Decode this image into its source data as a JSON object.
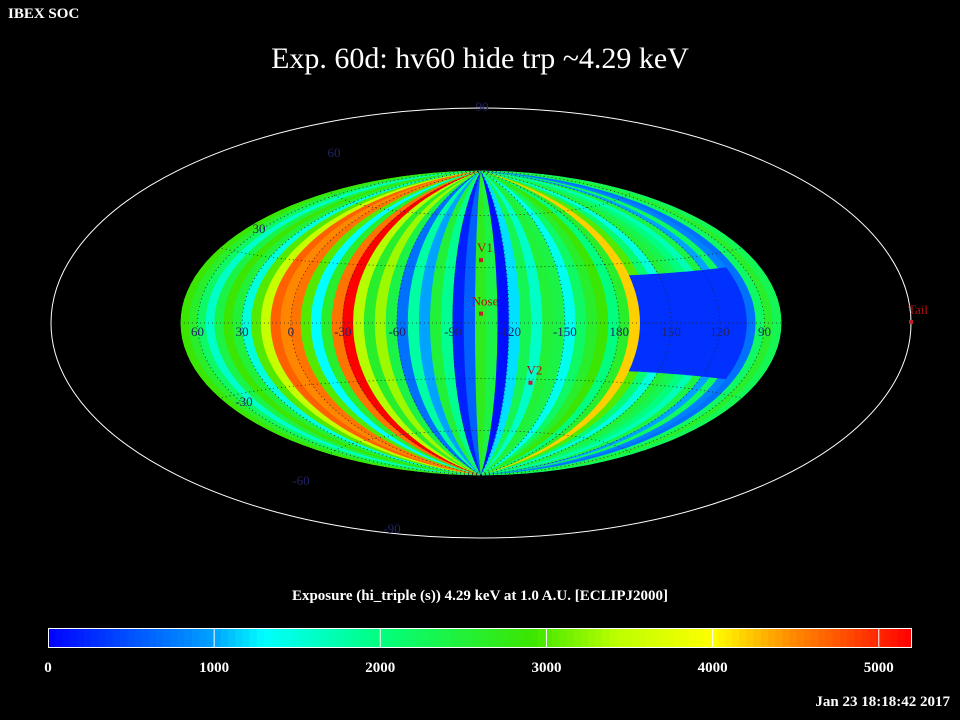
{
  "header": {
    "org": "IBEX SOC",
    "title": "Exp.   60d: hv60 hide trp ~4.29 keV"
  },
  "footer": {
    "timestamp": "Jan 23 18:18:42 2017"
  },
  "chart_data": {
    "type": "heatmap",
    "projection": "Aitoff/Hammer full-sky ecliptic",
    "title": "Exp.   60d: hv60 hide trp ~4.29 keV",
    "colorbar_label": "Exposure (hi_triple (s))  4.29 keV at 1.0 A.U. [ECLIPJ2000]",
    "colorbar_range": [
      0,
      5200
    ],
    "colorbar_ticks": [
      "0",
      "1000",
      "2000",
      "3000",
      "4000",
      "5000"
    ],
    "colorbar_tick_values": [
      0,
      1000,
      2000,
      3000,
      4000,
      5000
    ],
    "longitude_labels": [
      "60",
      "30",
      "0",
      "-30",
      "-60",
      "-90",
      "-120",
      "-150",
      "180",
      "150",
      "120",
      "90"
    ],
    "longitude_values": [
      60,
      30,
      0,
      -30,
      -60,
      -90,
      -120,
      -150,
      180,
      150,
      120,
      90
    ],
    "latitude_labels_upper": [
      "90",
      "60",
      "30"
    ],
    "latitude_labels_lower": [
      "-30",
      "-60",
      "-90"
    ],
    "markers": [
      {
        "label": "V1",
        "lon": -105,
        "lat": 34
      },
      {
        "label": "Nose",
        "lon": -105,
        "lat": 5
      },
      {
        "label": "V2",
        "lon": -135,
        "lat": -32
      },
      {
        "label": "Tail",
        "lon": 75,
        "lat": -5
      }
    ],
    "strip_exposure_by_longitude": [
      {
        "lon": 75,
        "exposure": 1500
      },
      {
        "lon": 69,
        "exposure": 2900
      },
      {
        "lon": 63,
        "exposure": 2600
      },
      {
        "lon": 57,
        "exposure": 2200
      },
      {
        "lon": 51,
        "exposure": 1600
      },
      {
        "lon": 45,
        "exposure": 2400
      },
      {
        "lon": 39,
        "exposure": 2900
      },
      {
        "lon": 33,
        "exposure": 2500
      },
      {
        "lon": 27,
        "exposure": 1500
      },
      {
        "lon": 21,
        "exposure": 3000
      },
      {
        "lon": 15,
        "exposure": 3500
      },
      {
        "lon": 9,
        "exposure": 4700
      },
      {
        "lon": 3,
        "exposure": 4500
      },
      {
        "lon": -3,
        "exposure": 4600
      },
      {
        "lon": -9,
        "exposure": 3000
      },
      {
        "lon": -15,
        "exposure": 1300
      },
      {
        "lon": -21,
        "exposure": 2600
      },
      {
        "lon": -27,
        "exposure": 4600
      },
      {
        "lon": -33,
        "exposure": 5200
      },
      {
        "lon": -39,
        "exposure": 3400
      },
      {
        "lon": -45,
        "exposure": 2600
      },
      {
        "lon": -51,
        "exposure": 3300
      },
      {
        "lon": -57,
        "exposure": 2400
      },
      {
        "lon": -63,
        "exposure": 700
      },
      {
        "lon": -69,
        "exposure": 1800
      },
      {
        "lon": -75,
        "exposure": 1000
      },
      {
        "lon": -81,
        "exposure": 2500
      },
      {
        "lon": -87,
        "exposure": 1900
      },
      {
        "lon": -93,
        "exposure": 200
      },
      {
        "lon": -99,
        "exposure": 600
      },
      {
        "lon": -105,
        "exposure": 2700
      },
      {
        "lon": -111,
        "exposure": 2400
      },
      {
        "lon": -117,
        "exposure": 100
      },
      {
        "lon": -123,
        "exposure": 1200
      },
      {
        "lon": -129,
        "exposure": 2300
      },
      {
        "lon": -135,
        "exposure": 1600
      },
      {
        "lon": -141,
        "exposure": 2500
      },
      {
        "lon": -147,
        "exposure": 2400
      },
      {
        "lon": -153,
        "exposure": 1400
      },
      {
        "lon": -159,
        "exposure": 2200
      },
      {
        "lon": -165,
        "exposure": 2600
      },
      {
        "lon": -171,
        "exposure": 2900
      },
      {
        "lon": -177,
        "exposure": 2000
      },
      {
        "lon": 177,
        "exposure": 2600
      },
      {
        "lon": 171,
        "exposure": 4200
      },
      {
        "lon": 165,
        "exposure": 3000
      },
      {
        "lon": 159,
        "exposure": 2100
      },
      {
        "lon": 153,
        "exposure": 1500
      },
      {
        "lon": 147,
        "exposure": 2500
      },
      {
        "lon": 141,
        "exposure": 2300
      },
      {
        "lon": 135,
        "exposure": 2000
      },
      {
        "lon": 129,
        "exposure": 1700
      },
      {
        "lon": 123,
        "exposure": 2400
      },
      {
        "lon": 117,
        "exposure": 1000
      },
      {
        "lon": 111,
        "exposure": 2200
      },
      {
        "lon": 105,
        "exposure": 800
      },
      {
        "lon": 99,
        "exposure": 700
      },
      {
        "lon": 93,
        "exposure": 2200
      },
      {
        "lon": 87,
        "exposure": 2600
      },
      {
        "lon": 81,
        "exposure": 2300
      }
    ],
    "low_exposure_region": {
      "lon_range": [
        100,
        165
      ],
      "lat_range": [
        -25,
        25
      ],
      "exposure": 300
    }
  }
}
